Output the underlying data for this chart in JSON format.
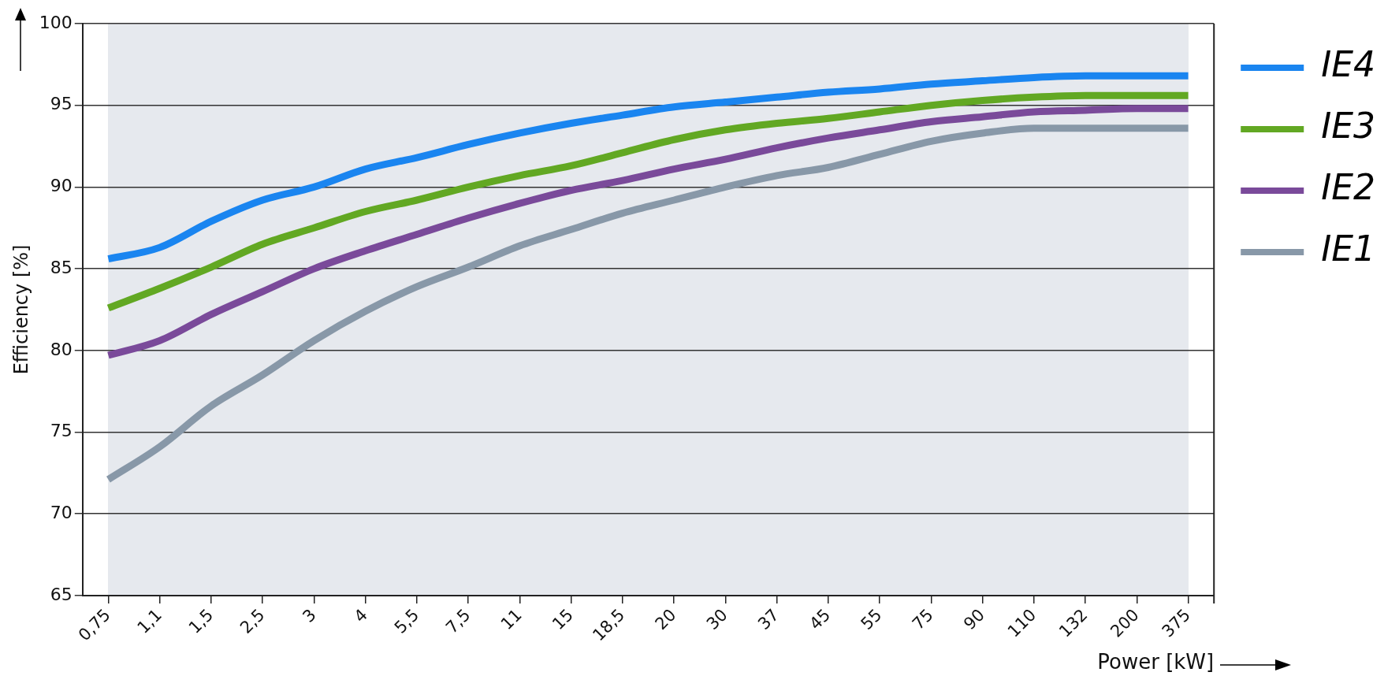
{
  "chart_data": {
    "type": "line",
    "xlabel": "Power [kW]",
    "ylabel": "Efficiency [%]",
    "categories": [
      "0,75",
      "1,1",
      "1,5",
      "2,5",
      "3",
      "4",
      "5,5",
      "7,5",
      "11",
      "15",
      "18,5",
      "20",
      "30",
      "37",
      "45",
      "55",
      "75",
      "90",
      "110",
      "132",
      "200",
      "375"
    ],
    "series": [
      {
        "name": "IE4",
        "color": "#1a85f0",
        "values": [
          85.6,
          86.3,
          87.9,
          89.2,
          90.0,
          91.1,
          91.8,
          92.6,
          93.3,
          93.9,
          94.4,
          94.9,
          95.2,
          95.5,
          95.8,
          96.0,
          96.3,
          96.5,
          96.7,
          96.8,
          96.8,
          96.8
        ]
      },
      {
        "name": "IE3",
        "color": "#62a823",
        "values": [
          82.6,
          83.8,
          85.1,
          86.5,
          87.5,
          88.5,
          89.2,
          90.0,
          90.7,
          91.3,
          92.1,
          92.9,
          93.5,
          93.9,
          94.2,
          94.6,
          95.0,
          95.3,
          95.5,
          95.6,
          95.6,
          95.6
        ]
      },
      {
        "name": "IE2",
        "color": "#7a4a9a",
        "values": [
          79.7,
          80.6,
          82.2,
          83.6,
          85.0,
          86.1,
          87.1,
          88.1,
          89.0,
          89.8,
          90.4,
          91.1,
          91.7,
          92.4,
          93.0,
          93.5,
          94.0,
          94.3,
          94.6,
          94.7,
          94.8,
          94.8
        ]
      },
      {
        "name": "IE1",
        "color": "#8898a8",
        "values": [
          72.1,
          74.1,
          76.6,
          78.5,
          80.6,
          82.4,
          83.9,
          85.1,
          86.4,
          87.4,
          88.4,
          89.2,
          90.0,
          90.7,
          91.2,
          92.0,
          92.8,
          93.3,
          93.6,
          93.6,
          93.6,
          93.6
        ]
      }
    ],
    "ylim": [
      65,
      100
    ],
    "yticks": [
      65,
      70,
      75,
      80,
      85,
      90,
      95,
      100
    ],
    "grid": "y",
    "legend": "right",
    "marker": "none",
    "line_style": "solid"
  }
}
